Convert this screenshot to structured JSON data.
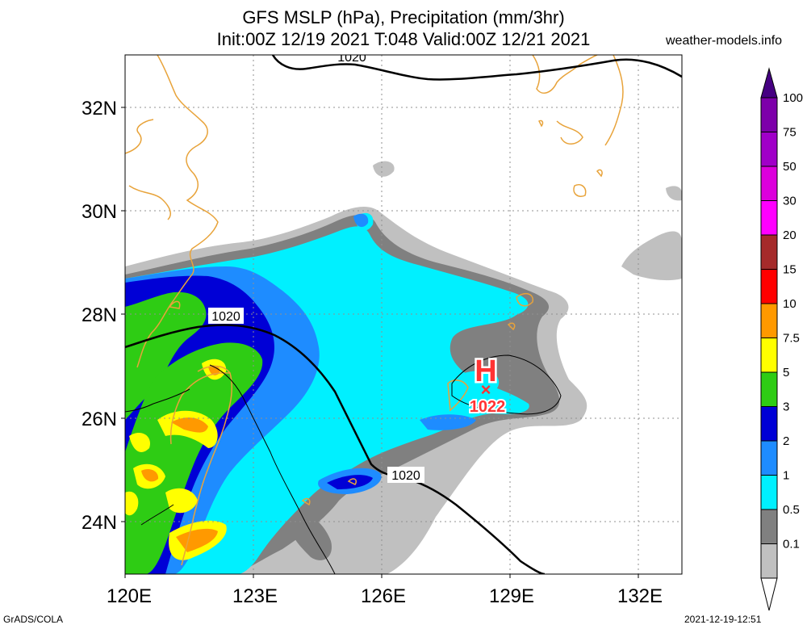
{
  "header": {
    "title_line1": "GFS MSLP (hPa), Precipitation (mm/3hr)",
    "title_line2": "Init:00Z 12/19 2021 T:048 Valid:00Z 12/21 2021",
    "site": "weather-models.info"
  },
  "footer": {
    "left": "GrADS/COLA",
    "right": "2021-12-19-12:51"
  },
  "map": {
    "lon_range": [
      120,
      133
    ],
    "lat_range": [
      23,
      33
    ],
    "lon_ticks": [
      "120E",
      "123E",
      "126E",
      "129E",
      "132E"
    ],
    "lat_ticks": [
      "32N",
      "30N",
      "28N",
      "26N",
      "24N"
    ],
    "grid": "dotted",
    "isobar_labels": [
      "1020",
      "1020",
      "1020"
    ],
    "high": {
      "symbol": "H",
      "marker": "×",
      "value": "1022",
      "color": "#ff3333"
    }
  },
  "colorbar": {
    "labels": [
      "100",
      "75",
      "50",
      "30",
      "20",
      "15",
      "10",
      "7.5",
      "5",
      "3",
      "2",
      "1",
      "0.5",
      "0.1"
    ],
    "colors": [
      "#7d00aa",
      "#a000c8",
      "#dc00dc",
      "#ff00ff",
      "#a52a2a",
      "#ff0000",
      "#ff9900",
      "#ffff00",
      "#2ecc14",
      "#0000d6",
      "#1e8cff",
      "#00f0ff",
      "#808080",
      "#c0c0c0"
    ],
    "bottom_color": "#ffffff",
    "top_color": "#460082"
  }
}
